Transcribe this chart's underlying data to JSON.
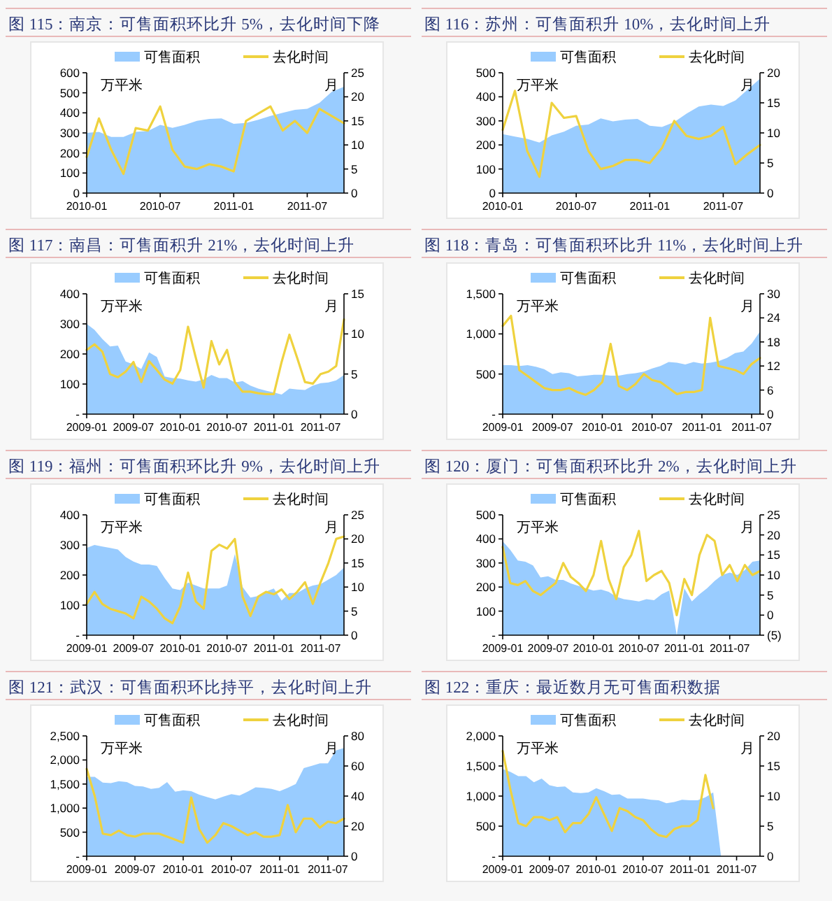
{
  "chart_data": [
    {
      "type": "area",
      "title": "图 115：南京：可售面积环比升 5%，去化时间下降",
      "ylabel": "万平米",
      "y2label": "月",
      "legend": "top",
      "x": [
        "2010-01",
        "2010-02",
        "2010-03",
        "2010-04",
        "2010-05",
        "2010-06",
        "2010-07",
        "2010-08",
        "2010-09",
        "2010-10",
        "2010-11",
        "2010-12",
        "2011-01",
        "2011-02",
        "2011-03",
        "2011-04",
        "2011-05",
        "2011-06",
        "2011-07",
        "2011-08",
        "2011-09",
        "2011-10"
      ],
      "xlim": [
        "2010-01",
        "2011-10"
      ],
      "xticks": [
        "2010-01",
        "2010-07",
        "2011-01",
        "2011-07"
      ],
      "ylim": [
        0,
        600
      ],
      "yticks": [
        0,
        100,
        200,
        300,
        400,
        500,
        600
      ],
      "y2lim": [
        0,
        25
      ],
      "y2ticks": [
        0,
        5,
        10,
        15,
        20,
        25
      ],
      "series": [
        {
          "name": "可售面积",
          "color": "#99ccff",
          "values": [
            300,
            305,
            280,
            280,
            305,
            310,
            340,
            325,
            340,
            360,
            370,
            372,
            345,
            350,
            365,
            385,
            400,
            415,
            420,
            450,
            505,
            530
          ]
        },
        {
          "name": "去化时间",
          "type": "line",
          "axis": "y2",
          "color": "#efd23e",
          "values": [
            7.5,
            15.5,
            9,
            4,
            13.5,
            13,
            18,
            9,
            5.5,
            5,
            6,
            5.5,
            4.5,
            15,
            16.5,
            18,
            13,
            15,
            12.5,
            17.5,
            16,
            14.5
          ]
        }
      ]
    },
    {
      "type": "area",
      "title": "图 116：苏州：可售面积升 10%，去化时间上升",
      "ylabel": "万平米",
      "y2label": "月",
      "legend": "top",
      "x": [
        "2010-01",
        "2010-02",
        "2010-03",
        "2010-04",
        "2010-05",
        "2010-06",
        "2010-07",
        "2010-08",
        "2010-09",
        "2010-10",
        "2010-11",
        "2010-12",
        "2011-01",
        "2011-02",
        "2011-03",
        "2011-04",
        "2011-05",
        "2011-06",
        "2011-07",
        "2011-08",
        "2011-09",
        "2011-10"
      ],
      "xlim": [
        "2010-01",
        "2011-10"
      ],
      "xticks": [
        "2010-01",
        "2010-07",
        "2011-01",
        "2011-07"
      ],
      "ylim": [
        0,
        500
      ],
      "yticks": [
        0,
        100,
        200,
        300,
        400,
        500
      ],
      "y2lim": [
        0,
        20
      ],
      "y2ticks": [
        0,
        5,
        10,
        15,
        20
      ],
      "series": [
        {
          "name": "可售面积",
          "color": "#99ccff",
          "values": [
            245,
            235,
            225,
            210,
            240,
            255,
            280,
            285,
            310,
            298,
            305,
            308,
            280,
            275,
            295,
            330,
            360,
            368,
            362,
            385,
            430,
            475
          ]
        },
        {
          "name": "去化时间",
          "type": "line",
          "axis": "y2",
          "color": "#efd23e",
          "values": [
            10.5,
            17,
            7,
            2.7,
            15,
            12.5,
            12.8,
            7,
            4,
            4.5,
            5.5,
            5.5,
            5,
            7.5,
            12,
            9.5,
            9,
            9.5,
            11,
            4.8,
            6.5,
            8
          ]
        }
      ]
    },
    {
      "type": "area",
      "title": "图 117：南昌：可售面积升 21%，去化时间上升",
      "ylabel": "万平米",
      "y2label": "月",
      "legend": "top",
      "x": [
        "2009-01",
        "2009-02",
        "2009-03",
        "2009-04",
        "2009-05",
        "2009-06",
        "2009-07",
        "2009-08",
        "2009-09",
        "2009-10",
        "2009-11",
        "2009-12",
        "2010-01",
        "2010-02",
        "2010-03",
        "2010-04",
        "2010-05",
        "2010-06",
        "2010-07",
        "2010-08",
        "2010-09",
        "2010-10",
        "2010-11",
        "2010-12",
        "2011-01",
        "2011-02",
        "2011-03",
        "2011-04",
        "2011-05",
        "2011-06",
        "2011-07",
        "2011-08",
        "2011-09",
        "2011-10"
      ],
      "xlim": [
        "2009-01",
        "2011-10"
      ],
      "xticks": [
        "2009-01",
        "2009-07",
        "2010-01",
        "2010-07",
        "2011-01",
        "2011-07"
      ],
      "ylim": [
        0,
        400
      ],
      "yticks": [
        {
          "value": 0,
          "label": "-"
        },
        100,
        200,
        300,
        400
      ],
      "y2lim": [
        0,
        15
      ],
      "y2ticks": [
        0,
        5,
        10,
        15
      ],
      "series": [
        {
          "name": "可售面积",
          "color": "#99ccff",
          "values": [
            300,
            280,
            250,
            225,
            228,
            175,
            165,
            150,
            205,
            190,
            125,
            120,
            118,
            112,
            108,
            115,
            130,
            120,
            120,
            105,
            110,
            95,
            85,
            78,
            72,
            65,
            85,
            82,
            80,
            95,
            103,
            105,
            112,
            130
          ]
        },
        {
          "name": "去化时间",
          "type": "line",
          "axis": "y2",
          "color": "#efd23e",
          "values": [
            8,
            8.7,
            7.8,
            5,
            4.6,
            5.3,
            6.5,
            4,
            6.6,
            5.5,
            4.3,
            3.8,
            5.5,
            10.9,
            7,
            3.3,
            9.1,
            6.2,
            8,
            4,
            2.8,
            2.8,
            2.6,
            2.5,
            2.5,
            6.5,
            9.9,
            7,
            4,
            3.8,
            5,
            5.3,
            6,
            11.8
          ]
        }
      ]
    },
    {
      "type": "area",
      "title": "图 118：青岛：可售面积环比升 11%，去化时间上升",
      "ylabel": "万平米",
      "y2label": "月",
      "legend": "top",
      "x": [
        "2009-01",
        "2009-02",
        "2009-03",
        "2009-04",
        "2009-05",
        "2009-06",
        "2009-07",
        "2009-08",
        "2009-09",
        "2009-10",
        "2009-11",
        "2009-12",
        "2010-01",
        "2010-02",
        "2010-03",
        "2010-04",
        "2010-05",
        "2010-06",
        "2010-07",
        "2010-08",
        "2010-09",
        "2010-10",
        "2010-11",
        "2010-12",
        "2011-01",
        "2011-02",
        "2011-03",
        "2011-04",
        "2011-05",
        "2011-06",
        "2011-07",
        "2011-08"
      ],
      "xlim": [
        "2009-01",
        "2011-08"
      ],
      "xticks": [
        "2009-01",
        "2009-07",
        "2010-01",
        "2010-07",
        "2011-01",
        "2011-07"
      ],
      "ylim": [
        0,
        1500
      ],
      "yticks": [
        {
          "value": 0,
          "label": "-"
        },
        500,
        {
          "value": 1000,
          "label": "1,000"
        },
        {
          "value": 1500,
          "label": "1,500"
        }
      ],
      "y2lim": [
        0,
        30
      ],
      "y2ticks": [
        0,
        6,
        12,
        18,
        24,
        30
      ],
      "series": [
        {
          "name": "可售面积",
          "color": "#99ccff",
          "values": [
            610,
            610,
            600,
            610,
            590,
            560,
            500,
            520,
            510,
            470,
            480,
            490,
            490,
            480,
            480,
            500,
            510,
            530,
            570,
            600,
            650,
            640,
            620,
            650,
            630,
            640,
            660,
            700,
            760,
            780,
            880,
            1030
          ]
        },
        {
          "name": "去化时间",
          "type": "line",
          "axis": "y2",
          "color": "#efd23e",
          "values": [
            22,
            24.5,
            11,
            9.5,
            8,
            6.5,
            6,
            6,
            6.5,
            5.5,
            4.8,
            6,
            8,
            17.5,
            7,
            6,
            7.5,
            10,
            8.5,
            8,
            6.5,
            5,
            5.5,
            5.5,
            6,
            24,
            12,
            11.5,
            11,
            10,
            12.5,
            14
          ]
        }
      ]
    },
    {
      "type": "area",
      "title": "图 119：福州：可售面积环比升 9%，去化时间上升",
      "ylabel": "万平米",
      "y2label": "月",
      "legend": "top",
      "x": [
        "2009-01",
        "2009-02",
        "2009-03",
        "2009-04",
        "2009-05",
        "2009-06",
        "2009-07",
        "2009-08",
        "2009-09",
        "2009-10",
        "2009-11",
        "2009-12",
        "2010-01",
        "2010-02",
        "2010-03",
        "2010-04",
        "2010-05",
        "2010-06",
        "2010-07",
        "2010-08",
        "2010-09",
        "2010-10",
        "2010-11",
        "2010-12",
        "2011-01",
        "2011-02",
        "2011-03",
        "2011-04",
        "2011-05",
        "2011-06",
        "2011-07",
        "2011-08",
        "2011-09",
        "2011-10"
      ],
      "xlim": [
        "2009-01",
        "2011-10"
      ],
      "xticks": [
        "2009-01",
        "2009-07",
        "2010-01",
        "2010-07",
        "2011-01",
        "2011-07"
      ],
      "ylim": [
        0,
        400
      ],
      "yticks": [
        {
          "value": 0,
          "label": "-"
        },
        100,
        200,
        300,
        400
      ],
      "y2lim": [
        0,
        25
      ],
      "y2ticks": [
        0,
        5,
        10,
        15,
        20,
        25
      ],
      "series": [
        {
          "name": "可售面积",
          "color": "#99ccff",
          "values": [
            290,
            300,
            295,
            290,
            285,
            260,
            245,
            235,
            235,
            230,
            190,
            155,
            150,
            175,
            165,
            155,
            155,
            155,
            165,
            270,
            160,
            125,
            130,
            145,
            155,
            115,
            140,
            140,
            155,
            165,
            170,
            185,
            200,
            225
          ]
        },
        {
          "name": "去化时间",
          "type": "line",
          "axis": "y2",
          "color": "#efd23e",
          "values": [
            6.5,
            9,
            6.5,
            5.5,
            5,
            4.5,
            3.5,
            8,
            7,
            5.5,
            3.5,
            2.5,
            6,
            13,
            7,
            5.5,
            17.5,
            18.8,
            18,
            20,
            8,
            4,
            8,
            9,
            8.5,
            9.5,
            7.5,
            9,
            11,
            6.5,
            11,
            15,
            20,
            20.5
          ]
        }
      ]
    },
    {
      "type": "area",
      "title": "图 120：厦门：可售面积环比升 2%，去化时间上升",
      "ylabel": "万平米",
      "y2label": "月",
      "legend": "top",
      "x": [
        "2009-01",
        "2009-02",
        "2009-03",
        "2009-04",
        "2009-05",
        "2009-06",
        "2009-07",
        "2009-08",
        "2009-09",
        "2009-10",
        "2009-11",
        "2009-12",
        "2010-01",
        "2010-02",
        "2010-03",
        "2010-04",
        "2010-05",
        "2010-06",
        "2010-07",
        "2010-08",
        "2010-09",
        "2010-10",
        "2010-11",
        "2010-12",
        "2011-01",
        "2011-02",
        "2011-03",
        "2011-04",
        "2011-05",
        "2011-06",
        "2011-07",
        "2011-08",
        "2011-09",
        "2011-10",
        "2011-11"
      ],
      "xlim": [
        "2009-01",
        "2011-11"
      ],
      "xticks": [
        "2009-01",
        "2009-07",
        "2010-01",
        "2010-07",
        "2011-01",
        "2011-07"
      ],
      "ylim": [
        0,
        500
      ],
      "yticks": [
        {
          "value": 0,
          "label": "-"
        },
        100,
        200,
        300,
        400,
        500
      ],
      "y2lim": [
        -5,
        25
      ],
      "y2ticks": [
        {
          "value": -5,
          "label": "(5)"
        },
        0,
        5,
        10,
        15,
        20,
        25
      ],
      "series": [
        {
          "name": "可售面积",
          "color": "#99ccff",
          "values": [
            390,
            355,
            310,
            305,
            290,
            240,
            245,
            230,
            230,
            215,
            205,
            195,
            185,
            190,
            180,
            160,
            150,
            145,
            140,
            150,
            145,
            170,
            185,
            0,
            195,
            140,
            170,
            195,
            225,
            250,
            260,
            250,
            270,
            305,
            310
          ]
        },
        {
          "name": "去化时间",
          "type": "line",
          "axis": "y2",
          "color": "#efd23e",
          "values": [
            17,
            8,
            7.5,
            8.5,
            6,
            5,
            6.5,
            8,
            13,
            9.5,
            8,
            6,
            10,
            18.5,
            9,
            4,
            12,
            15,
            21,
            8.5,
            10,
            11,
            8,
            0,
            9,
            5,
            15,
            20,
            18.5,
            10,
            12.5,
            8.5,
            12.5,
            10,
            11
          ]
        }
      ]
    },
    {
      "type": "area",
      "title": "图 121：武汉：可售面积环比持平，去化时间上升",
      "ylabel": "万平米",
      "y2label": "月",
      "legend": "top",
      "x": [
        "2009-01",
        "2009-02",
        "2009-03",
        "2009-04",
        "2009-05",
        "2009-06",
        "2009-07",
        "2009-08",
        "2009-09",
        "2009-10",
        "2009-11",
        "2009-12",
        "2010-01",
        "2010-02",
        "2010-03",
        "2010-04",
        "2010-05",
        "2010-06",
        "2010-07",
        "2010-08",
        "2010-09",
        "2010-10",
        "2010-11",
        "2010-12",
        "2011-01",
        "2011-02",
        "2011-03",
        "2011-04",
        "2011-05",
        "2011-06",
        "2011-07",
        "2011-08",
        "2011-09"
      ],
      "xlim": [
        "2009-01",
        "2011-09"
      ],
      "xticks": [
        "2009-01",
        "2009-07",
        "2010-01",
        "2010-07",
        "2011-01",
        "2011-07"
      ],
      "ylim": [
        0,
        2500
      ],
      "yticks": [
        {
          "value": 0,
          "label": "-"
        },
        500,
        {
          "value": 1000,
          "label": "1,000"
        },
        {
          "value": 1500,
          "label": "1,500"
        },
        {
          "value": 2000,
          "label": "2,000"
        },
        {
          "value": 2500,
          "label": "2,500"
        }
      ],
      "y2lim": [
        0,
        80
      ],
      "y2ticks": [
        0,
        20,
        40,
        60,
        80
      ],
      "series": [
        {
          "name": "可售面积",
          "color": "#99ccff",
          "values": [
            1650,
            1650,
            1530,
            1520,
            1560,
            1540,
            1460,
            1450,
            1400,
            1420,
            1540,
            1340,
            1370,
            1350,
            1280,
            1230,
            1180,
            1240,
            1290,
            1260,
            1340,
            1430,
            1420,
            1400,
            1350,
            1420,
            1500,
            1830,
            1880,
            1930,
            1930,
            2200,
            2250
          ]
        },
        {
          "name": "去化时间",
          "type": "line",
          "axis": "y2",
          "color": "#efd23e",
          "values": [
            58,
            40,
            15,
            14,
            17,
            14,
            13,
            15,
            15,
            15,
            13,
            11,
            9,
            39,
            18,
            9,
            14,
            22,
            20,
            17,
            14,
            16,
            13,
            13,
            14,
            34,
            16,
            25,
            25,
            19,
            23,
            22,
            25
          ]
        }
      ]
    },
    {
      "type": "area",
      "title": "图 122：重庆：最近数月无可售面积数据",
      "ylabel": "万平米",
      "y2label": "月",
      "legend": "top",
      "x": [
        "2009-01",
        "2009-02",
        "2009-03",
        "2009-04",
        "2009-05",
        "2009-06",
        "2009-07",
        "2009-08",
        "2009-09",
        "2009-10",
        "2009-11",
        "2009-12",
        "2010-01",
        "2010-02",
        "2010-03",
        "2010-04",
        "2010-05",
        "2010-06",
        "2010-07",
        "2010-08",
        "2010-09",
        "2010-10",
        "2010-11",
        "2010-12",
        "2011-01",
        "2011-02",
        "2011-03",
        "2011-04",
        "2011-05"
      ],
      "xlim": [
        "2009-01",
        "2011-10"
      ],
      "xticks": [
        "2009-01",
        "2009-07",
        "2010-01",
        "2010-07",
        "2011-01",
        "2011-07"
      ],
      "ylim": [
        0,
        2000
      ],
      "yticks": [
        {
          "value": 0,
          "label": "-"
        },
        500,
        {
          "value": 1000,
          "label": "1,000"
        },
        {
          "value": 1500,
          "label": "1,500"
        },
        {
          "value": 2000,
          "label": "2,000"
        }
      ],
      "y2lim": [
        0,
        20
      ],
      "y2ticks": [
        0,
        5,
        10,
        15,
        20
      ],
      "series": [
        {
          "name": "可售面积",
          "color": "#99ccff",
          "values": [
            1450,
            1400,
            1330,
            1330,
            1230,
            1290,
            1180,
            1150,
            1160,
            1060,
            1050,
            1060,
            1130,
            1080,
            1020,
            1030,
            960,
            960,
            960,
            940,
            930,
            880,
            900,
            940,
            930,
            930,
            980,
            1060,
            0
          ]
        },
        {
          "name": "去化时间",
          "type": "line",
          "axis": "y2",
          "color": "#efd23e",
          "values": [
            17.5,
            11,
            5.5,
            5,
            6.5,
            6.5,
            6,
            6.5,
            4,
            5.5,
            5.5,
            7,
            9.8,
            7,
            4.2,
            8,
            7.5,
            6.5,
            6,
            4.5,
            3.5,
            3.2,
            4.5,
            5,
            5,
            6,
            13.5,
            8,
            null
          ]
        }
      ]
    }
  ]
}
